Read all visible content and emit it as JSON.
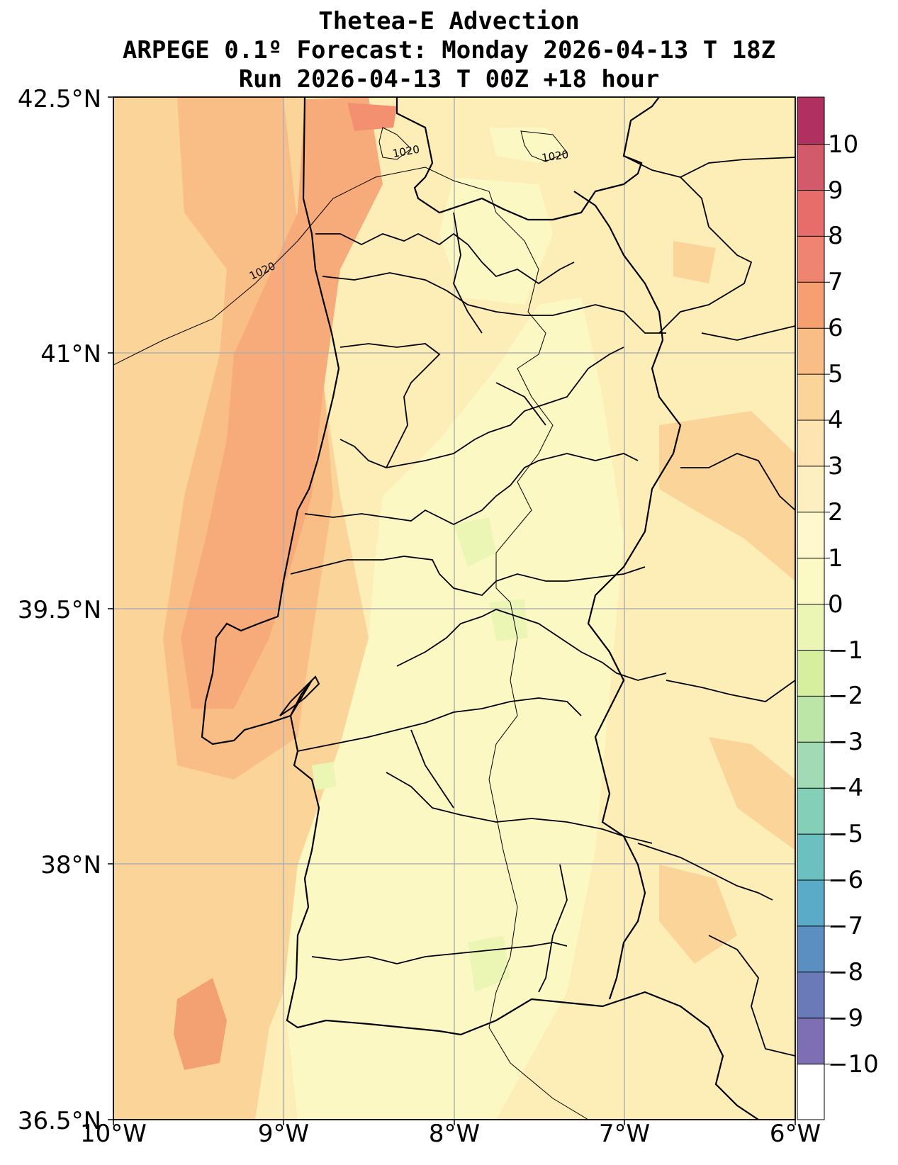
{
  "title_lines": [
    "Thetea-E Advection",
    "ARPEGE 0.1º Forecast: Monday 2026-04-13 T 18Z",
    "Run 2026-04-13 T 00Z +18 hour"
  ],
  "map": {
    "lat_labels": [
      "42.5°N",
      "41°N",
      "39.5°N",
      "38°N",
      "36.5°N"
    ],
    "lon_labels": [
      "10°W",
      "9°W",
      "8°W",
      "7°W",
      "6°W"
    ],
    "isobar_label": "1020",
    "features": [
      "coastline",
      "district-borders",
      "country-border",
      "isobars",
      "filled-contours"
    ]
  },
  "colorbar": {
    "labels": [
      "10",
      "9",
      "8",
      "7",
      "6",
      "5",
      "4",
      "3",
      "2",
      "1",
      "0",
      "−1",
      "−2",
      "−3",
      "−4",
      "−5",
      "−6",
      "−7",
      "−8",
      "−9",
      "−10"
    ],
    "colors": [
      "#b03060",
      "#d35a6a",
      "#e76d6b",
      "#ef8570",
      "#f6a072",
      "#f9be86",
      "#fbd49a",
      "#fde4b0",
      "#feefc0",
      "#fff8cc",
      "#fbf9c4",
      "#ebf6b4",
      "#d6ef9f",
      "#bce6a8",
      "#a1dab4",
      "#84cfb8",
      "#6cc0c0",
      "#5aabc8",
      "#5b8fc2",
      "#6a7ab8",
      "#7e6fb4"
    ]
  }
}
